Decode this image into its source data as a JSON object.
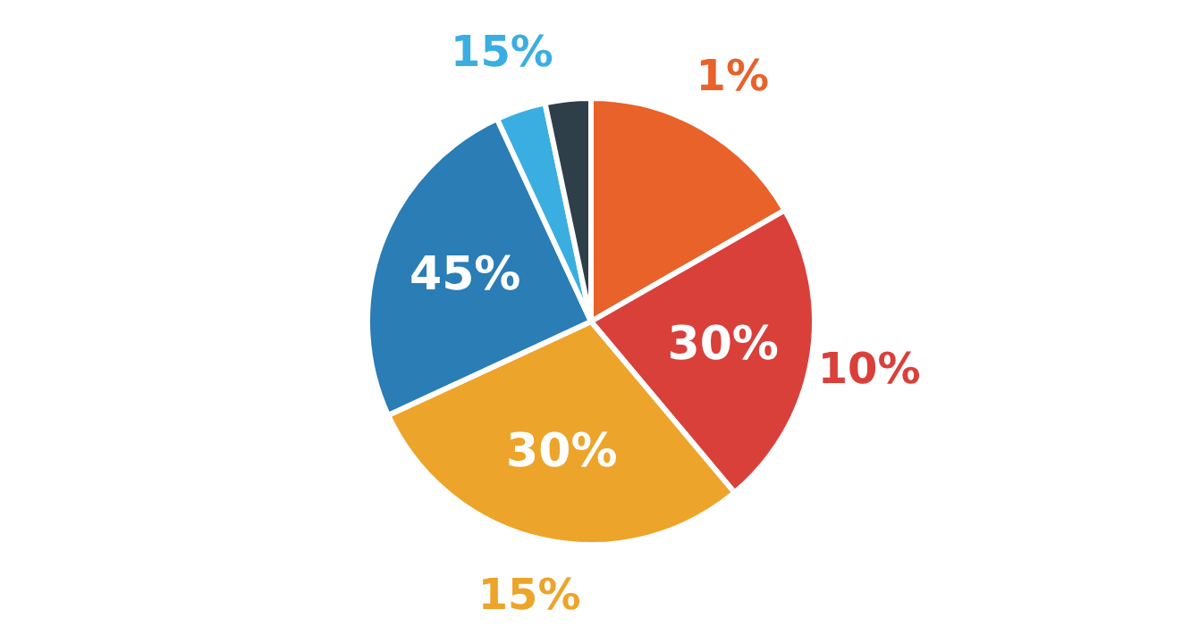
{
  "chart_data": {
    "type": "pie",
    "categories": [
      null,
      null,
      null,
      null,
      null,
      null
    ],
    "values": [
      16.7,
      22.2,
      29.2,
      25,
      3.6,
      3.3
    ],
    "colors": [
      "#e8622a",
      "#d9403a",
      "#eda42a",
      "#2a7db5",
      "#3aaee0",
      "#2e3f4a"
    ],
    "annotations": [
      "1%",
      "30%",
      "10%",
      "30%",
      "15%",
      "45%",
      "15%"
    ],
    "legend": false
  }
}
